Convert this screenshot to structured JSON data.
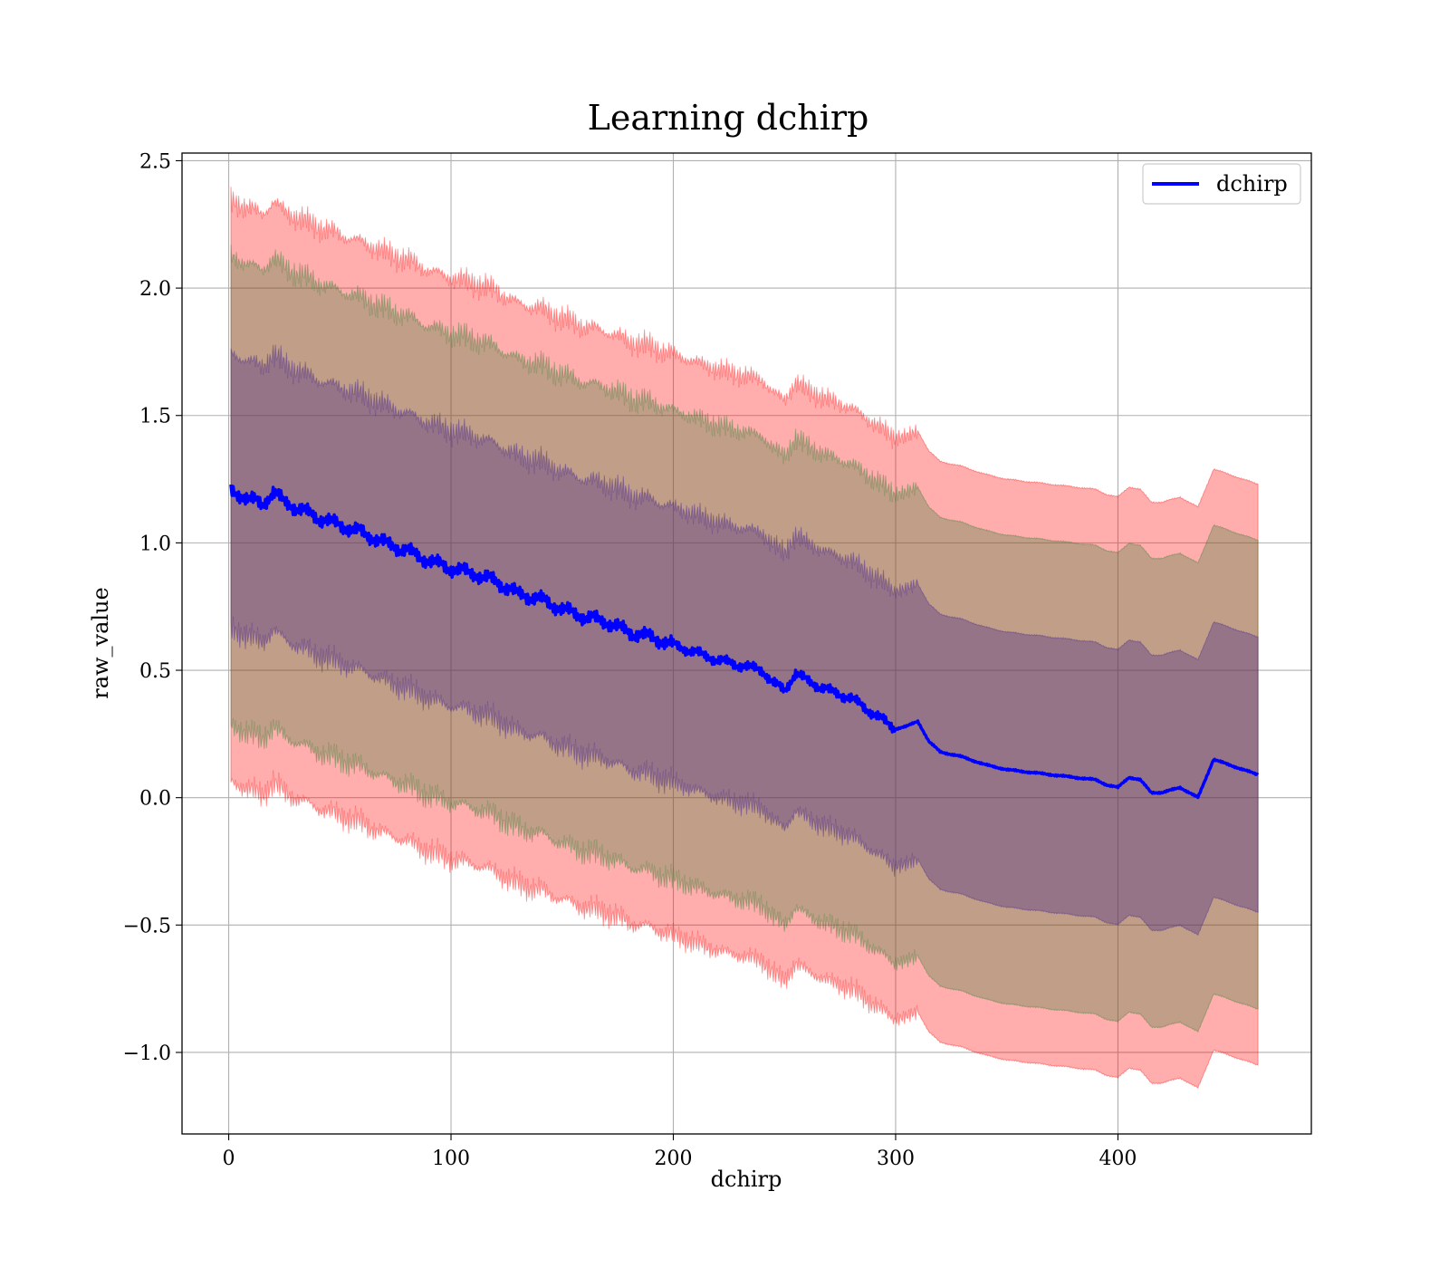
{
  "chart_data": {
    "type": "line",
    "title": "Learning dchirp",
    "xlabel": "dchirp",
    "ylabel": "raw_value",
    "xlim": [
      -21,
      487
    ],
    "ylim": [
      -1.32,
      2.53
    ],
    "xticks": [
      0,
      100,
      200,
      300,
      400
    ],
    "xtick_labels": [
      "0",
      "100",
      "200",
      "300",
      "400"
    ],
    "yticks": [
      -1.0,
      -0.5,
      0.0,
      0.5,
      1.0,
      1.5,
      2.0,
      2.5
    ],
    "ytick_labels": [
      "−1.0",
      "−0.5",
      "0.0",
      "0.5",
      "1.0",
      "1.5",
      "2.0",
      "2.5"
    ],
    "grid": true,
    "legend": {
      "position": "top-right",
      "entries": [
        "dchirp"
      ]
    },
    "series": [
      {
        "name": "dchirp",
        "color": "#0000ff",
        "x": [
          1,
          5,
          10,
          15,
          20,
          25,
          30,
          40,
          50,
          60,
          70,
          80,
          90,
          100,
          110,
          120,
          130,
          140,
          150,
          160,
          170,
          180,
          190,
          200,
          210,
          220,
          230,
          240,
          245,
          250,
          255,
          260,
          270,
          280,
          290,
          300,
          305,
          310,
          315,
          320,
          330,
          340,
          350,
          360,
          370,
          380,
          390,
          395,
          400,
          405,
          410,
          415,
          420,
          428,
          436,
          443,
          463
        ],
        "y": [
          1.2,
          1.19,
          1.17,
          1.15,
          1.2,
          1.16,
          1.14,
          1.1,
          1.07,
          1.04,
          1.0,
          0.97,
          0.93,
          0.9,
          0.88,
          0.85,
          0.8,
          0.78,
          0.74,
          0.71,
          0.69,
          0.65,
          0.63,
          0.6,
          0.57,
          0.54,
          0.52,
          0.5,
          0.45,
          0.42,
          0.49,
          0.46,
          0.42,
          0.39,
          0.33,
          0.27,
          0.28,
          0.3,
          0.22,
          0.18,
          0.16,
          0.13,
          0.11,
          0.1,
          0.09,
          0.08,
          0.07,
          0.05,
          0.04,
          0.08,
          0.07,
          0.02,
          0.02,
          0.04,
          0.0,
          0.15,
          0.09
        ]
      }
    ],
    "bands": [
      {
        "sigma": 3,
        "color": "#ff0000",
        "opacity": 0.32,
        "halfwidth_start": 1.14,
        "halfwidth_end": 1.14
      },
      {
        "sigma": 2,
        "color": "#2e7d32",
        "opacity": 0.3,
        "halfwidth_start": 0.92,
        "halfwidth_end": 0.92
      },
      {
        "sigma": 1,
        "color": "#3f1f8c",
        "opacity": 0.33,
        "halfwidth_start": 0.54,
        "halfwidth_end": 0.54
      }
    ]
  }
}
